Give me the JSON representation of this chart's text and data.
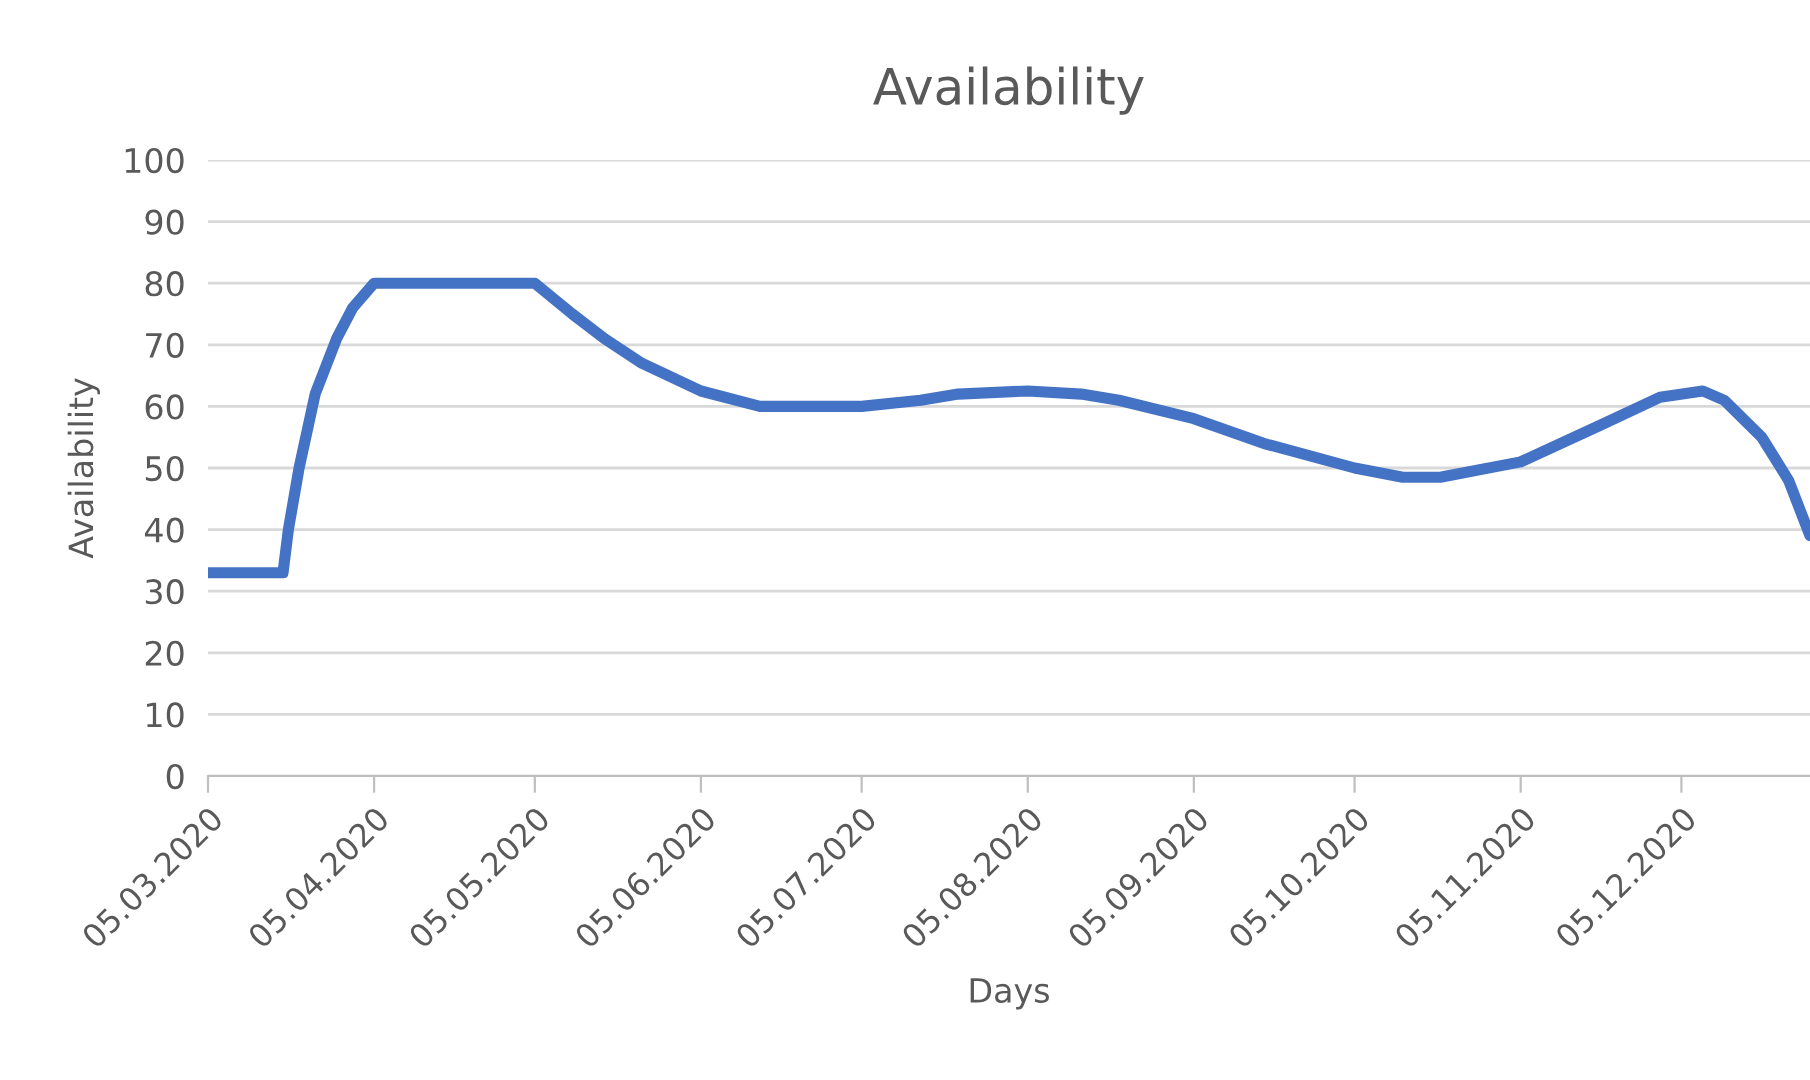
{
  "chart_data": {
    "type": "line",
    "title": "Availability",
    "xlabel": "Days",
    "ylabel": "Availability",
    "x": [
      "2020-03-05",
      "2020-03-19",
      "2020-03-20",
      "2020-03-22",
      "2020-03-25",
      "2020-03-29",
      "2020-04-01",
      "2020-04-05",
      "2020-05-05",
      "2020-05-12",
      "2020-05-18",
      "2020-05-25",
      "2020-06-05",
      "2020-06-16",
      "2020-07-05",
      "2020-07-16",
      "2020-07-23",
      "2020-08-05",
      "2020-08-15",
      "2020-08-22",
      "2020-09-05",
      "2020-09-18",
      "2020-10-05",
      "2020-10-14",
      "2020-10-21",
      "2020-11-05",
      "2020-11-20",
      "2020-12-01",
      "2020-12-09",
      "2020-12-13",
      "2020-12-20",
      "2020-12-25",
      "2020-12-29"
    ],
    "series": [
      {
        "color": "#4472c4",
        "values": [
          33,
          33,
          40,
          50,
          62,
          71,
          76,
          80,
          80,
          75,
          71,
          67,
          62.5,
          60,
          60,
          61,
          62,
          62.5,
          62,
          61,
          58,
          54,
          50,
          48.5,
          48.5,
          51,
          57,
          61.5,
          62.5,
          61,
          55,
          48,
          39
        ]
      }
    ],
    "xlim": [
      "2020-03-05",
      "2020-12-29"
    ],
    "xticks": [
      {
        "value": "2020-03-05",
        "label": "05.03.2020"
      },
      {
        "value": "2020-04-05",
        "label": "05.04.2020"
      },
      {
        "value": "2020-05-05",
        "label": "05.05.2020"
      },
      {
        "value": "2020-06-05",
        "label": "05.06.2020"
      },
      {
        "value": "2020-07-05",
        "label": "05.07.2020"
      },
      {
        "value": "2020-08-05",
        "label": "05.08.2020"
      },
      {
        "value": "2020-09-05",
        "label": "05.09.2020"
      },
      {
        "value": "2020-10-05",
        "label": "05.10.2020"
      },
      {
        "value": "2020-11-05",
        "label": "05.11.2020"
      },
      {
        "value": "2020-12-05",
        "label": "05.12.2020"
      }
    ],
    "ylim": [
      0,
      100
    ],
    "yticks": [
      0,
      10,
      20,
      30,
      40,
      50,
      60,
      70,
      80,
      90,
      100
    ],
    "grid": "y",
    "legend": false,
    "marker": "none",
    "line_style": "solid"
  }
}
